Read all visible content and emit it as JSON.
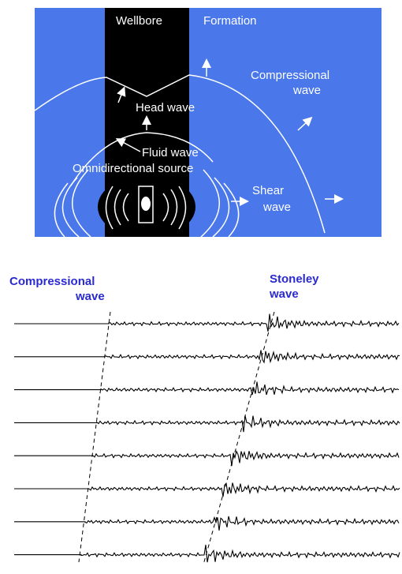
{
  "diagram": {
    "wellbore": "Wellbore",
    "formation": "Formation",
    "compressional_wave": [
      "Compressional",
      "wave"
    ],
    "head_wave": "Head wave",
    "fluid_wave": "Fluid wave",
    "source": "Omnidirectional source",
    "shear_wave": [
      "Shear",
      "wave"
    ]
  },
  "waveforms": {
    "compressional_wave": [
      "Compressional",
      "wave"
    ],
    "stoneley_wave": [
      "Stoneley",
      "wave"
    ]
  }
}
